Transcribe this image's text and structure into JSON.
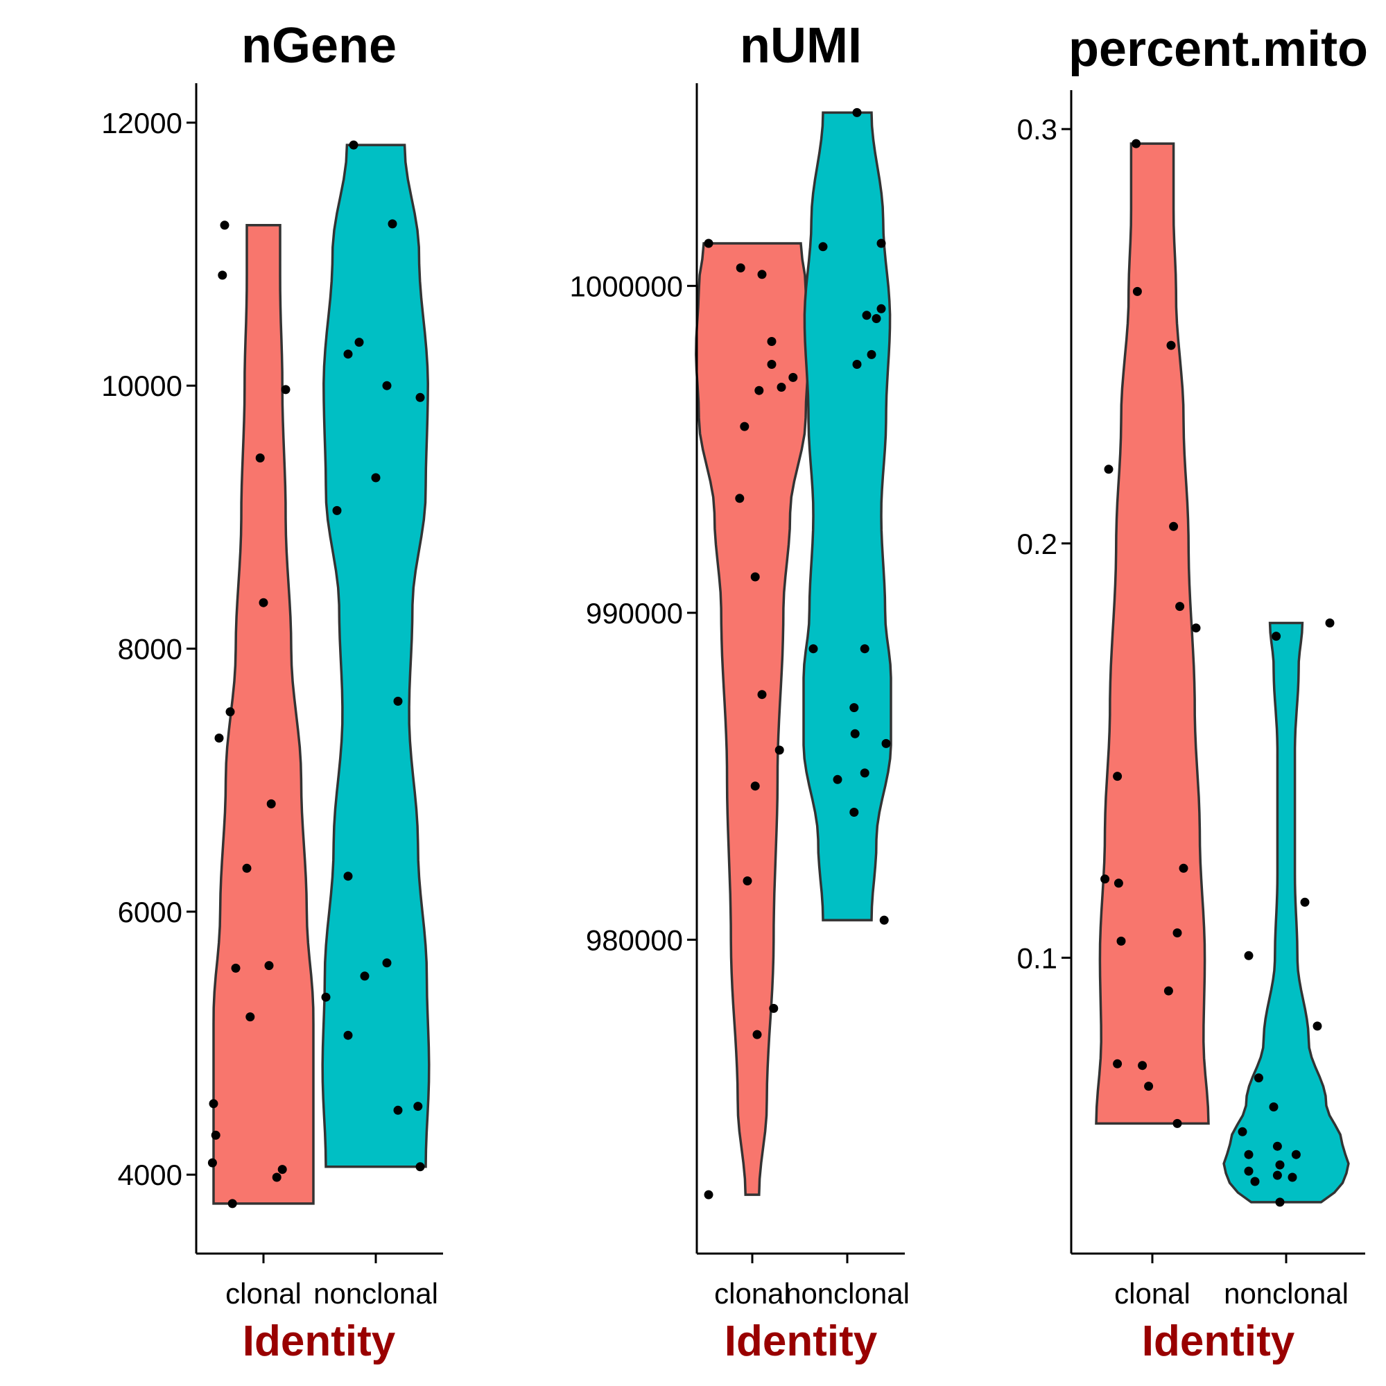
{
  "colors": {
    "clonal": "#F8766D",
    "nonclonal": "#00BFC4",
    "axis_title": "#990000"
  },
  "chart_data": [
    {
      "type": "violin",
      "title": "nGene",
      "xlabel": "Identity",
      "categories": [
        "clonal",
        "nonclonal"
      ],
      "ylim": [
        3400,
        12300
      ],
      "yticks": [
        4000,
        6000,
        8000,
        10000,
        12000
      ],
      "ytick_labels": [
        "4000",
        "6000",
        "8000",
        "10000",
        "12000"
      ],
      "series": [
        {
          "category": "clonal",
          "points": [
            [
              -0.35,
              11220
            ],
            [
              -0.37,
              10840
            ],
            [
              0.2,
              9970
            ],
            [
              -0.03,
              9450
            ],
            [
              0.0,
              8350
            ],
            [
              -0.3,
              7520
            ],
            [
              -0.4,
              7320
            ],
            [
              0.07,
              6820
            ],
            [
              -0.15,
              6330
            ],
            [
              -0.25,
              5570
            ],
            [
              0.05,
              5590
            ],
            [
              -0.12,
              5200
            ],
            [
              -0.45,
              4540
            ],
            [
              -0.43,
              4300
            ],
            [
              -0.46,
              4090
            ],
            [
              0.12,
              3980
            ],
            [
              0.17,
              4040
            ],
            [
              -0.28,
              3780
            ]
          ],
          "violin": [
            [
              3780,
              0.45
            ],
            [
              4500,
              0.45
            ],
            [
              5200,
              0.45
            ],
            [
              6000,
              0.39
            ],
            [
              7000,
              0.34
            ],
            [
              8000,
              0.25
            ],
            [
              9000,
              0.2
            ],
            [
              10000,
              0.17
            ],
            [
              10800,
              0.15
            ],
            [
              11220,
              0.15
            ]
          ]
        },
        {
          "category": "nonclonal",
          "points": [
            [
              -0.2,
              11830
            ],
            [
              0.15,
              11230
            ],
            [
              -0.15,
              10330
            ],
            [
              -0.25,
              10240
            ],
            [
              0.1,
              10000
            ],
            [
              0.4,
              9910
            ],
            [
              0.0,
              9300
            ],
            [
              -0.35,
              9050
            ],
            [
              0.2,
              7600
            ],
            [
              -0.25,
              6270
            ],
            [
              0.1,
              5610
            ],
            [
              -0.1,
              5510
            ],
            [
              -0.45,
              5350
            ],
            [
              -0.25,
              5060
            ],
            [
              0.2,
              4490
            ],
            [
              0.38,
              4520
            ],
            [
              0.4,
              4060
            ]
          ],
          "violin": [
            [
              4060,
              0.45
            ],
            [
              4800,
              0.48
            ],
            [
              5500,
              0.46
            ],
            [
              6500,
              0.38
            ],
            [
              7500,
              0.3
            ],
            [
              8300,
              0.33
            ],
            [
              9200,
              0.45
            ],
            [
              10000,
              0.47
            ],
            [
              11000,
              0.39
            ],
            [
              11830,
              0.26
            ]
          ]
        }
      ]
    },
    {
      "type": "violin",
      "title": "nUMI",
      "xlabel": "Identity",
      "categories": [
        "clonal",
        "nonclonal"
      ],
      "ylim": [
        970400,
        1006200
      ],
      "yticks": [
        980000,
        990000,
        1000000
      ],
      "ytick_labels": [
        "980000",
        "990000",
        "1000000"
      ],
      "series": [
        {
          "category": "clonal",
          "points": [
            [
              -0.45,
              1001300
            ],
            [
              -0.12,
              1000550
            ],
            [
              0.1,
              1000350
            ],
            [
              0.2,
              998300
            ],
            [
              0.2,
              997600
            ],
            [
              0.42,
              997200
            ],
            [
              0.3,
              996900
            ],
            [
              0.07,
              996800
            ],
            [
              -0.08,
              995700
            ],
            [
              -0.13,
              993500
            ],
            [
              0.03,
              991100
            ],
            [
              0.1,
              987500
            ],
            [
              0.28,
              985800
            ],
            [
              0.03,
              984700
            ],
            [
              -0.05,
              981800
            ],
            [
              0.22,
              977900
            ],
            [
              0.05,
              977100
            ],
            [
              -0.45,
              972200
            ]
          ],
          "violin": [
            [
              972200,
              0.07
            ],
            [
              975000,
              0.15
            ],
            [
              980000,
              0.22
            ],
            [
              985000,
              0.26
            ],
            [
              990000,
              0.32
            ],
            [
              993000,
              0.39
            ],
            [
              996000,
              0.55
            ],
            [
              998000,
              0.58
            ],
            [
              1000000,
              0.55
            ],
            [
              1001300,
              0.5
            ]
          ]
        },
        {
          "category": "nonclonal",
          "points": [
            [
              0.1,
              1005300
            ],
            [
              -0.25,
              1001200
            ],
            [
              0.35,
              1001300
            ],
            [
              0.3,
              999000
            ],
            [
              0.2,
              999100
            ],
            [
              0.35,
              999300
            ],
            [
              0.25,
              997900
            ],
            [
              0.1,
              997600
            ],
            [
              -0.35,
              988900
            ],
            [
              0.18,
              988900
            ],
            [
              0.07,
              987100
            ],
            [
              0.08,
              986300
            ],
            [
              0.4,
              986000
            ],
            [
              -0.1,
              984900
            ],
            [
              0.18,
              985100
            ],
            [
              0.07,
              983900
            ],
            [
              0.38,
              980600
            ]
          ],
          "violin": [
            [
              980600,
              0.25
            ],
            [
              983000,
              0.3
            ],
            [
              986000,
              0.45
            ],
            [
              988000,
              0.45
            ],
            [
              990000,
              0.39
            ],
            [
              993000,
              0.35
            ],
            [
              996000,
              0.4
            ],
            [
              999000,
              0.44
            ],
            [
              1002000,
              0.37
            ],
            [
              1005300,
              0.25
            ]
          ]
        }
      ]
    },
    {
      "type": "violin",
      "title": "percent.mito",
      "xlabel": "Identity",
      "categories": [
        "clonal",
        "nonclonal"
      ],
      "ylim": [
        0.0286,
        0.3094
      ],
      "yticks": [
        0.1,
        0.2,
        0.3
      ],
      "ytick_labels": [
        "0.1",
        "0.2",
        "0.3"
      ],
      "series": [
        {
          "category": "clonal",
          "points": [
            [
              -0.13,
              0.2965
            ],
            [
              -0.12,
              0.2608
            ],
            [
              0.15,
              0.2478
            ],
            [
              -0.35,
              0.2179
            ],
            [
              0.17,
              0.2041
            ],
            [
              0.22,
              0.1848
            ],
            [
              0.35,
              0.1796
            ],
            [
              -0.28,
              0.1438
            ],
            [
              0.25,
              0.1216
            ],
            [
              -0.38,
              0.119
            ],
            [
              -0.27,
              0.118
            ],
            [
              -0.25,
              0.104
            ],
            [
              0.2,
              0.106
            ],
            [
              0.13,
              0.092
            ],
            [
              -0.28,
              0.0744
            ],
            [
              -0.08,
              0.074
            ],
            [
              -0.03,
              0.069
            ],
            [
              0.2,
              0.06
            ]
          ],
          "violin": [
            [
              0.06,
              0.45
            ],
            [
              0.08,
              0.41
            ],
            [
              0.1,
              0.42
            ],
            [
              0.13,
              0.38
            ],
            [
              0.16,
              0.34
            ],
            [
              0.2,
              0.29
            ],
            [
              0.23,
              0.25
            ],
            [
              0.26,
              0.19
            ],
            [
              0.28,
              0.17
            ],
            [
              0.2965,
              0.17
            ]
          ]
        },
        {
          "category": "nonclonal",
          "points": [
            [
              0.35,
              0.1808
            ],
            [
              -0.08,
              0.1776
            ],
            [
              0.15,
              0.1134
            ],
            [
              -0.3,
              0.1005
            ],
            [
              0.25,
              0.0835
            ],
            [
              -0.22,
              0.071
            ],
            [
              -0.35,
              0.058
            ],
            [
              -0.1,
              0.064
            ],
            [
              -0.3,
              0.0525
            ],
            [
              -0.07,
              0.0545
            ],
            [
              0.08,
              0.0525
            ],
            [
              -0.05,
              0.05
            ],
            [
              -0.3,
              0.0485
            ],
            [
              -0.07,
              0.0475
            ],
            [
              0.05,
              0.047
            ],
            [
              -0.25,
              0.046
            ],
            [
              -0.05,
              0.041
            ]
          ],
          "violin": [
            [
              0.041,
              0.28
            ],
            [
              0.045,
              0.45
            ],
            [
              0.05,
              0.5
            ],
            [
              0.055,
              0.45
            ],
            [
              0.065,
              0.32
            ],
            [
              0.08,
              0.18
            ],
            [
              0.1,
              0.09
            ],
            [
              0.12,
              0.07
            ],
            [
              0.15,
              0.07
            ],
            [
              0.17,
              0.1
            ],
            [
              0.1808,
              0.13
            ]
          ]
        }
      ]
    }
  ]
}
